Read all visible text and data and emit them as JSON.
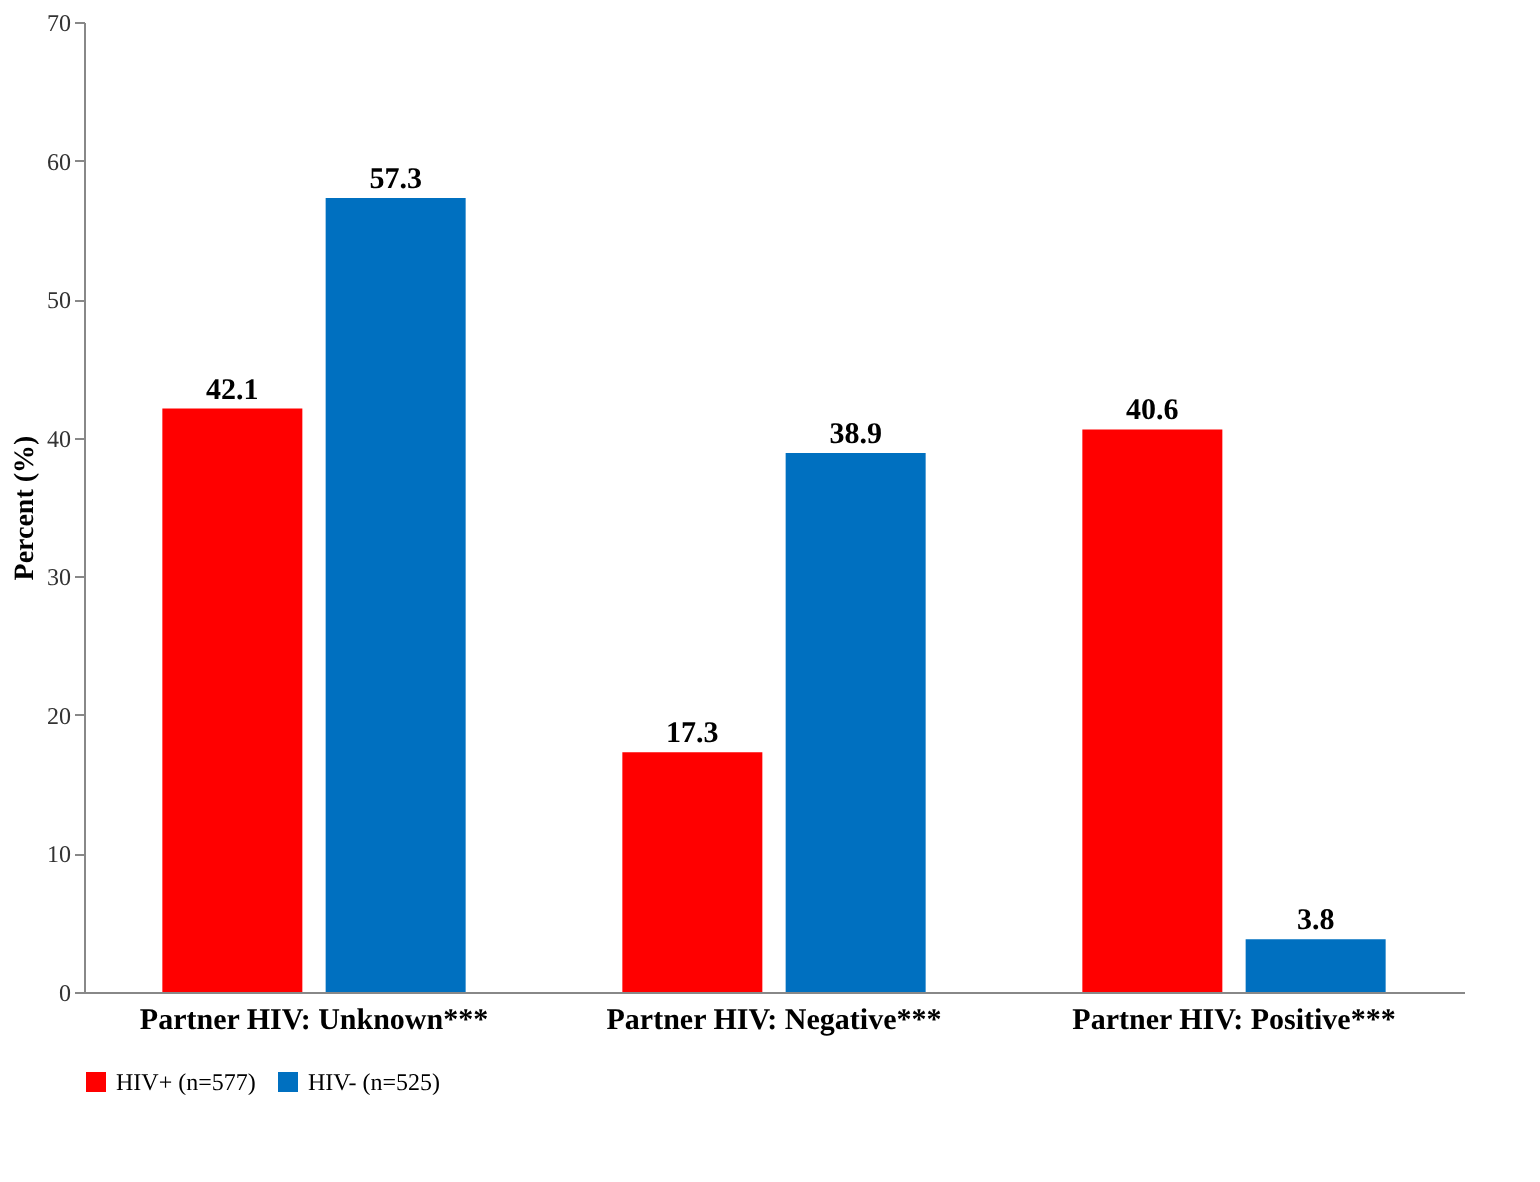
{
  "chart_data": {
    "type": "bar",
    "ylabel": "Percent (%)",
    "categories": [
      "Partner HIV: Unknown***",
      "Partner HIV: Negative***",
      "Partner HIV: Positive***"
    ],
    "series": [
      {
        "name": "HIV+ (n=577)",
        "color": "#ff0000",
        "values": [
          42.1,
          17.3,
          40.6
        ]
      },
      {
        "name": "HIV- (n=525)",
        "color": "#0070c0",
        "values": [
          57.3,
          38.9,
          3.8
        ]
      }
    ],
    "ylim": [
      0,
      70
    ],
    "yticks": [
      0,
      10,
      20,
      30,
      40,
      50,
      60,
      70
    ],
    "grid": false,
    "legend": "bottom",
    "data_labels": true
  }
}
